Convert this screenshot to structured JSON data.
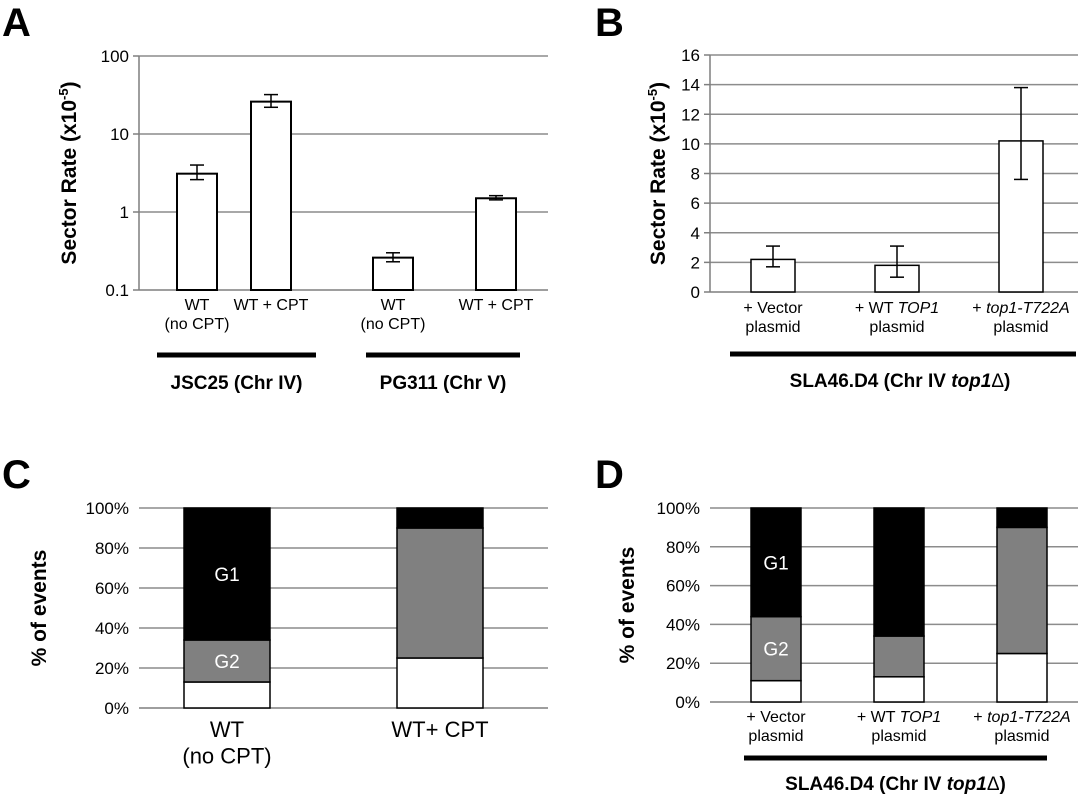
{
  "chart_data": [
    {
      "panel": "A",
      "type": "bar",
      "ylabel": "Sector Rate (x10-5)",
      "ylabel_base": "Sector Rate (x10",
      "ylabel_exp": "-5",
      "ylabel_close": ")",
      "yscale": "log",
      "ylim": [
        0.1,
        100
      ],
      "yticks": [
        "100",
        "10",
        "1",
        "0.1"
      ],
      "grid": true,
      "categories": [
        [
          "WT",
          "(no CPT)"
        ],
        [
          "WT + CPT"
        ],
        [
          "WT",
          "(no CPT)"
        ],
        [
          "WT + CPT"
        ]
      ],
      "values": [
        3.1,
        26,
        0.26,
        1.5
      ],
      "err_low": [
        2.6,
        22,
        0.23,
        1.43
      ],
      "err_high": [
        4.0,
        32,
        0.3,
        1.62
      ],
      "groups": [
        {
          "label": "JSC25 (Chr IV)",
          "span": [
            0,
            1
          ]
        },
        {
          "label": "PG311 (Chr V)",
          "span": [
            2,
            3
          ]
        }
      ]
    },
    {
      "panel": "B",
      "type": "bar",
      "ylabel": "Sector Rate (x10-5)",
      "ylabel_base": "Sector Rate (x10",
      "ylabel_exp": "-5",
      "ylabel_close": ")",
      "ylim": [
        0,
        16
      ],
      "yticks": [
        "0",
        "2",
        "4",
        "6",
        "8",
        "10",
        "12",
        "14",
        "16"
      ],
      "grid": true,
      "categories": [
        [
          {
            "t": "+ Vector"
          },
          {
            "t": "plasmid"
          }
        ],
        [
          {
            "t": "+ WT "
          },
          {
            "t": "TOP1",
            "i": true
          },
          {
            "br": true
          },
          {
            "t": "plasmid"
          }
        ],
        [
          {
            "t": "+ "
          },
          {
            "t": "top1-T722A",
            "i": true
          },
          {
            "br": true
          },
          {
            "t": "plasmid"
          }
        ]
      ],
      "values": [
        2.2,
        1.8,
        10.2
      ],
      "err_low": [
        1.7,
        1.0,
        7.6
      ],
      "err_high": [
        3.1,
        3.1,
        13.8
      ],
      "group_label": {
        "strain": "SLA46.D4 (Chr IV ",
        "gene": "top1",
        "delta": "Δ",
        "close": ")"
      }
    },
    {
      "panel": "C",
      "type": "bar",
      "stacked": true,
      "ylabel": "% of events",
      "ylim": [
        0,
        100
      ],
      "yticks": [
        "0%",
        "20%",
        "40%",
        "60%",
        "80%",
        "100%"
      ],
      "grid": true,
      "categories": [
        [
          "WT",
          "(no CPT)"
        ],
        [
          "WT+ CPT"
        ]
      ],
      "segments": [
        {
          "color": "#ffffff",
          "values": [
            13,
            25
          ]
        },
        {
          "color": "#808080",
          "values": [
            21,
            65
          ],
          "label": "G2",
          "label_on": [
            0
          ]
        },
        {
          "color": "#000000",
          "values": [
            66,
            10
          ],
          "label": "G1",
          "label_on": [
            0
          ]
        }
      ]
    },
    {
      "panel": "D",
      "type": "bar",
      "stacked": true,
      "ylabel": "% of events",
      "ylim": [
        0,
        100
      ],
      "yticks": [
        "0%",
        "20%",
        "40%",
        "60%",
        "80%",
        "100%"
      ],
      "grid": true,
      "categories": [
        [
          {
            "t": "+ Vector"
          },
          {
            "t": "plasmid"
          }
        ],
        [
          {
            "t": "+ WT "
          },
          {
            "t": "TOP1",
            "i": true
          },
          {
            "br": true
          },
          {
            "t": "plasmid"
          }
        ],
        [
          {
            "t": "+ "
          },
          {
            "t": "top1-T722A",
            "i": true
          },
          {
            "br": true
          },
          {
            "t": "plasmid"
          }
        ]
      ],
      "segments": [
        {
          "color": "#ffffff",
          "values": [
            11,
            13,
            25
          ]
        },
        {
          "color": "#808080",
          "values": [
            33,
            21,
            65
          ],
          "label": "G2",
          "label_on": [
            0
          ]
        },
        {
          "color": "#000000",
          "values": [
            56,
            66,
            10
          ],
          "label": "G1",
          "label_on": [
            0
          ]
        }
      ],
      "group_label": {
        "strain": "SLA46.D4 (Chr IV ",
        "gene": "top1",
        "delta": "Δ",
        "close": ")"
      }
    }
  ],
  "panels": {
    "a": "A",
    "b": "B",
    "c": "C",
    "d": "D"
  }
}
